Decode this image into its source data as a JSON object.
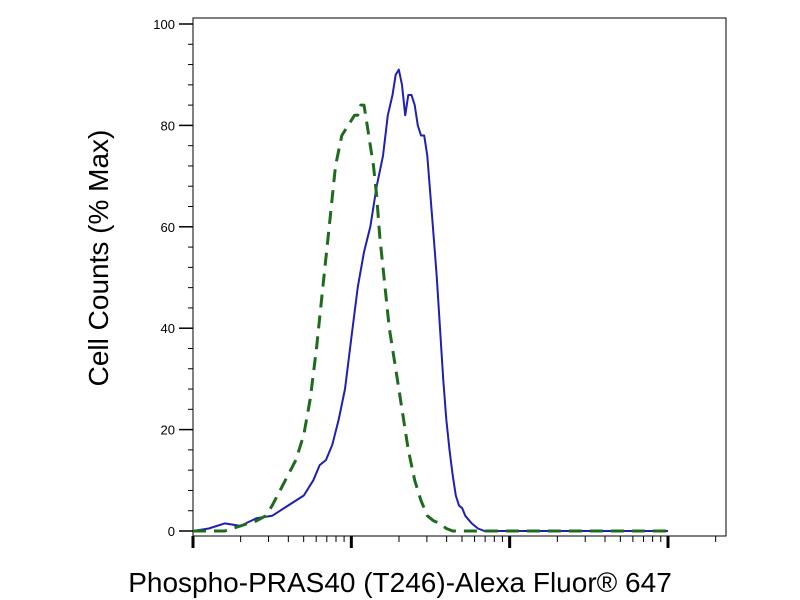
{
  "chart_data": {
    "type": "line",
    "title": "",
    "xlabel": "Phospho-PRAS40 (T246)-Alexa Fluor® 647",
    "ylabel": "Cell Counts (% Max)",
    "x_scale": "log",
    "x_range": [
      0,
      3
    ],
    "ylim": [
      -1,
      105
    ],
    "y_ticks": [
      "0",
      "20",
      "40",
      "60",
      "80",
      "100"
    ],
    "grid": false,
    "legend": "none",
    "colors": {
      "solid": "#1f1fb4",
      "dashed": "#1e6b1e"
    },
    "series": [
      {
        "style": "solid",
        "color": "#1f1fb4",
        "x": [
          0.0,
          0.1,
          0.2,
          0.3,
          0.4,
          0.5,
          0.6,
          0.7,
          0.76,
          0.8,
          0.84,
          0.88,
          0.92,
          0.96,
          1.0,
          1.04,
          1.08,
          1.12,
          1.16,
          1.2,
          1.23,
          1.26,
          1.28,
          1.3,
          1.32,
          1.34,
          1.36,
          1.38,
          1.4,
          1.42,
          1.44,
          1.46,
          1.48,
          1.5,
          1.52,
          1.54,
          1.56,
          1.58,
          1.6,
          1.62,
          1.64,
          1.66,
          1.68,
          1.7,
          1.72,
          1.76,
          1.8,
          1.84,
          1.88,
          1.92,
          1.98,
          2.05,
          2.15,
          2.3,
          2.5,
          2.7,
          2.85,
          2.95,
          3.0
        ],
        "y": [
          0,
          0.5,
          1.5,
          1,
          2.5,
          3,
          5,
          7,
          10,
          13,
          14,
          17,
          22,
          28,
          38,
          48,
          55,
          60,
          68,
          74,
          82,
          86,
          90,
          91,
          88,
          82,
          86,
          86,
          84,
          80,
          78,
          78,
          74,
          66,
          58,
          50,
          40,
          30,
          22,
          16,
          11,
          7,
          5,
          4.5,
          3,
          1.5,
          0.5,
          0,
          0,
          0,
          0,
          0,
          0,
          0,
          0,
          0,
          0,
          0,
          0
        ]
      },
      {
        "style": "dashed",
        "color": "#1e6b1e",
        "x": [
          0.0,
          0.1,
          0.2,
          0.3,
          0.4,
          0.46,
          0.5,
          0.55,
          0.6,
          0.65,
          0.7,
          0.74,
          0.78,
          0.82,
          0.86,
          0.9,
          0.94,
          0.98,
          1.02,
          1.04,
          1.06,
          1.08,
          1.1,
          1.12,
          1.14,
          1.16,
          1.18,
          1.2,
          1.24,
          1.28,
          1.32,
          1.36,
          1.4,
          1.44,
          1.48,
          1.52,
          1.56,
          1.6,
          1.64,
          1.68,
          1.74,
          1.8,
          1.9,
          2.0,
          2.2,
          2.4,
          2.6,
          2.8,
          3.0
        ],
        "y": [
          0,
          0,
          0,
          1,
          2,
          3,
          5,
          8,
          11,
          14,
          19,
          26,
          36,
          48,
          60,
          72,
          78,
          80,
          82,
          82,
          84,
          84,
          80,
          76,
          72,
          66,
          58,
          52,
          40,
          32,
          24,
          16,
          10,
          6,
          3,
          2,
          1.5,
          0.5,
          0,
          0,
          0,
          0,
          0,
          0,
          0,
          0,
          0,
          0,
          0
        ]
      }
    ]
  }
}
